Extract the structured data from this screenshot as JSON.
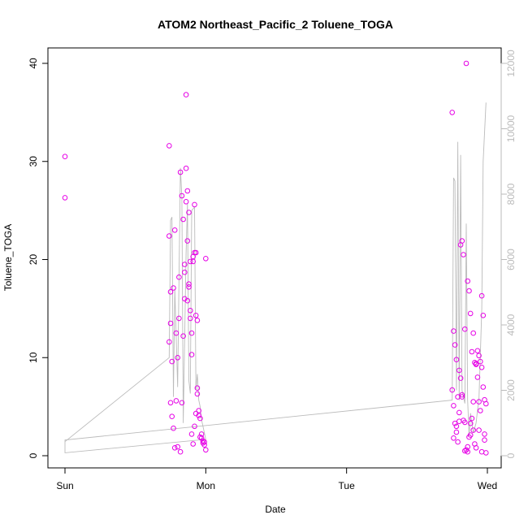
{
  "chart_data": {
    "type": "scatter",
    "title": "ATOM2 Northeast_Pacific_2 Toluene_TOGA",
    "xlabel": "Date",
    "ylabel": "Toluene_TOGA",
    "x_ticks": [
      "Sun",
      "Mon",
      "Tue",
      "Wed"
    ],
    "x_range": [
      "Sun",
      "Wed"
    ],
    "ylim": [
      0,
      40
    ],
    "y_ticks": [
      0,
      10,
      20,
      30,
      40
    ],
    "y2lim": [
      0,
      12000
    ],
    "y2_ticks": [
      0,
      2000,
      4000,
      6000,
      8000,
      10000,
      12000
    ],
    "grid": false,
    "colors": {
      "points": "#e600e6",
      "line": "#bbbbbb",
      "axis": "#000000",
      "axis2": "#bbbbbb"
    },
    "series": [
      {
        "kind": "points",
        "axis": "left",
        "x_days": [
          0.0,
          0.0,
          0.74,
          0.74,
          0.75,
          0.75,
          0.76,
          0.77,
          0.78,
          0.79,
          0.8,
          0.81,
          0.82,
          0.83,
          0.84,
          0.85,
          0.85,
          0.86,
          0.86,
          0.87,
          0.87,
          0.88,
          0.88,
          0.89,
          0.89,
          0.9,
          0.9,
          0.91,
          0.91,
          0.92,
          0.92,
          0.93,
          0.93,
          0.94,
          0.94,
          0.95,
          0.96,
          0.97,
          0.98,
          0.99,
          1.0,
          0.74,
          0.75,
          0.76,
          0.77,
          0.78,
          0.79,
          0.8,
          0.81,
          0.82,
          0.83,
          0.84,
          0.85,
          0.86,
          0.87,
          0.88,
          0.89,
          0.9,
          0.91,
          0.92,
          0.93,
          0.94,
          0.95,
          0.96,
          0.97,
          0.98,
          0.99,
          1.0,
          2.75,
          2.76,
          2.77,
          2.78,
          2.79,
          2.8,
          2.81,
          2.82,
          2.83,
          2.84,
          2.85,
          2.86,
          2.87,
          2.88,
          2.89,
          2.9,
          2.91,
          2.92,
          2.93,
          2.94,
          2.95,
          2.96,
          2.97,
          2.98,
          2.99,
          2.75,
          2.76,
          2.77,
          2.78,
          2.79,
          2.8,
          2.81,
          2.82,
          2.83,
          2.84,
          2.85,
          2.86,
          2.87,
          2.88,
          2.89,
          2.9,
          2.91,
          2.92,
          2.93,
          2.94,
          2.95,
          2.96,
          2.97,
          2.98,
          2.99,
          2.76,
          2.78,
          2.8,
          2.82,
          2.84,
          2.86,
          2.88,
          2.9,
          2.92,
          2.94,
          2.96,
          2.98
        ],
        "y": [
          30.5,
          26.3,
          31.6,
          22.4,
          16.7,
          13.5,
          9.6,
          17.1,
          23.0,
          12.5,
          0.9,
          18.2,
          28.9,
          26.5,
          24.1,
          19.5,
          16.0,
          36.8,
          29.3,
          15.8,
          21.9,
          17.5,
          17.2,
          14.0,
          14.8,
          10.3,
          12.5,
          20.3,
          19.8,
          25.6,
          20.7,
          20.7,
          14.3,
          13.8,
          6.9,
          4.1,
          3.8,
          2.2,
          1.5,
          1.1,
          0.6,
          11.6,
          5.4,
          4.0,
          2.8,
          0.8,
          5.6,
          10.0,
          14.0,
          0.4,
          5.4,
          12.2,
          18.7,
          25.9,
          27.0,
          24.8,
          19.8,
          2.2,
          1.2,
          3.0,
          4.3,
          6.3,
          4.6,
          1.9,
          1.8,
          1.3,
          1.4,
          20.1,
          35.0,
          12.7,
          11.3,
          9.8,
          6.0,
          3.5,
          21.5,
          21.9,
          20.5,
          12.9,
          40.0,
          17.8,
          16.8,
          14.5,
          10.6,
          12.5,
          9.5,
          9.3,
          8.0,
          5.5,
          4.6,
          16.3,
          14.3,
          5.7,
          5.3,
          6.7,
          5.1,
          3.3,
          2.4,
          1.4,
          8.7,
          7.9,
          6.2,
          3.6,
          3.4,
          0.6,
          0.4,
          1.9,
          3.3,
          3.8,
          2.6,
          1.2,
          0.8,
          10.7,
          10.2,
          9.6,
          9.0,
          7.0,
          1.6,
          0.3,
          1.8,
          3.0,
          4.4,
          6.0,
          0.5,
          0.9,
          2.1,
          5.5,
          9.4,
          2.6,
          0.4,
          2.2
        ]
      },
      {
        "kind": "line",
        "axis": "right",
        "x_days": [
          0.0,
          0.74,
          0.75,
          0.76,
          0.77,
          0.78,
          0.8,
          0.82,
          0.83,
          0.84,
          0.86,
          0.87,
          0.88,
          0.89,
          0.9,
          0.92,
          0.93,
          0.94,
          0.95,
          0.96,
          0.97,
          0.99,
          1.0,
          0.0,
          0.0,
          2.75,
          2.76,
          2.77,
          2.78,
          2.79,
          2.8,
          2.81,
          2.82,
          2.84,
          2.85,
          2.86,
          2.87,
          2.88,
          2.9,
          2.92,
          2.93,
          2.94,
          2.96,
          2.97,
          2.99
        ],
        "y": [
          430,
          3000,
          7200,
          7300,
          1800,
          5100,
          2100,
          8800,
          7900,
          1000,
          6200,
          7700,
          2300,
          1900,
          7500,
          7600,
          2000,
          2500,
          1700,
          1500,
          1100,
          700,
          500,
          90,
          480,
          1700,
          8500,
          8400,
          2000,
          9600,
          1700,
          9200,
          2000,
          1600,
          7100,
          1700,
          600,
          1300,
          700,
          1000,
          1400,
          1700,
          4500,
          9000,
          10800
        ]
      }
    ]
  }
}
